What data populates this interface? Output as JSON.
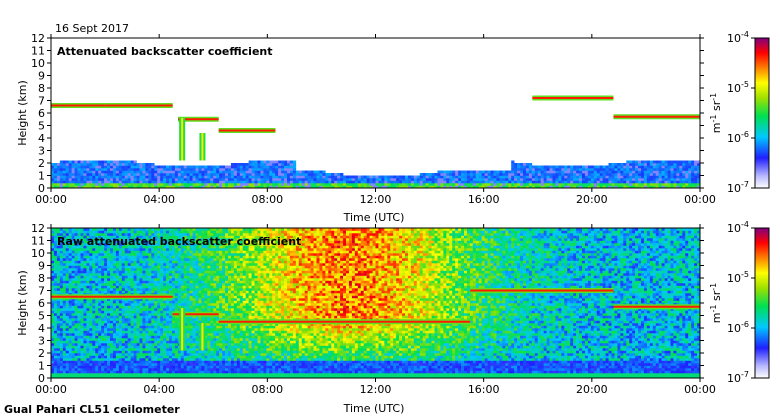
{
  "date_label": "16 Sept 2017",
  "footer_label": "Gual Pahari CL51 ceilometer",
  "chart_data": [
    {
      "type": "heatmap",
      "title": "Attenuated backscatter coefficient",
      "xlabel": "Time (UTC)",
      "ylabel": "Height (km)",
      "x_ticks": [
        "00:00",
        "04:00",
        "08:00",
        "12:00",
        "16:00",
        "20:00",
        "00:00"
      ],
      "y_ticks": [
        0,
        1,
        2,
        3,
        4,
        5,
        6,
        7,
        8,
        9,
        10,
        11,
        12
      ],
      "ylim": [
        0,
        12
      ],
      "xlim_hours": [
        0,
        24
      ],
      "colorbar": {
        "scale": "log",
        "range": [
          1e-07,
          0.0001
        ],
        "tick_labels": [
          "10",
          "10",
          "10",
          "10"
        ],
        "tick_exponents": [
          "-4",
          "-5",
          "-6",
          "-7"
        ],
        "label_main": "m",
        "label_exp1": "-1",
        "label_mid": " sr",
        "label_exp2": "-1"
      },
      "features": {
        "boundary_layer_top_km": 2.0,
        "cloud_layers": [
          {
            "start_h": 0.0,
            "end_h": 2.0,
            "height_km": 6.6
          },
          {
            "start_h": 2.0,
            "end_h": 4.5,
            "height_km": 6.6
          },
          {
            "start_h": 4.7,
            "end_h": 6.2,
            "height_km": 5.5
          },
          {
            "start_h": 6.2,
            "end_h": 8.3,
            "height_km": 4.6
          },
          {
            "start_h": 17.8,
            "end_h": 20.8,
            "height_km": 7.2
          },
          {
            "start_h": 20.8,
            "end_h": 24.0,
            "height_km": 5.7
          }
        ],
        "precip_shafts": [
          {
            "time_h": 4.85,
            "top_km": 5.6
          },
          {
            "time_h": 5.6,
            "top_km": 4.4
          }
        ]
      }
    },
    {
      "type": "heatmap",
      "title": "Raw attenuated backscatter coefficient",
      "xlabel": "Time (UTC)",
      "ylabel": "Height (km)",
      "x_ticks": [
        "00:00",
        "04:00",
        "08:00",
        "12:00",
        "16:00",
        "20:00",
        "00:00"
      ],
      "y_ticks": [
        0,
        1,
        2,
        3,
        4,
        5,
        6,
        7,
        8,
        9,
        10,
        11,
        12
      ],
      "ylim": [
        0,
        12
      ],
      "xlim_hours": [
        0,
        24
      ],
      "colorbar": {
        "scale": "log",
        "range": [
          1e-07,
          0.0001
        ],
        "tick_labels": [
          "10",
          "10",
          "10",
          "10"
        ],
        "tick_exponents": [
          "-4",
          "-5",
          "-6",
          "-7"
        ],
        "label_main": "m",
        "label_exp1": "-1",
        "label_mid": " sr",
        "label_exp2": "-1"
      },
      "features": {
        "noise_peak_time_h": 11.0,
        "cloud_layers": [
          {
            "start_h": 0.0,
            "end_h": 4.5,
            "height_km": 6.5
          },
          {
            "start_h": 4.5,
            "end_h": 6.2,
            "height_km": 5.1
          },
          {
            "start_h": 6.2,
            "end_h": 15.5,
            "height_km": 4.5
          },
          {
            "start_h": 15.5,
            "end_h": 20.8,
            "height_km": 7.0
          },
          {
            "start_h": 20.8,
            "end_h": 24.0,
            "height_km": 5.7
          }
        ],
        "precip_shafts": [
          {
            "time_h": 4.85,
            "top_km": 5.6
          },
          {
            "time_h": 5.6,
            "top_km": 4.4
          }
        ]
      }
    }
  ]
}
